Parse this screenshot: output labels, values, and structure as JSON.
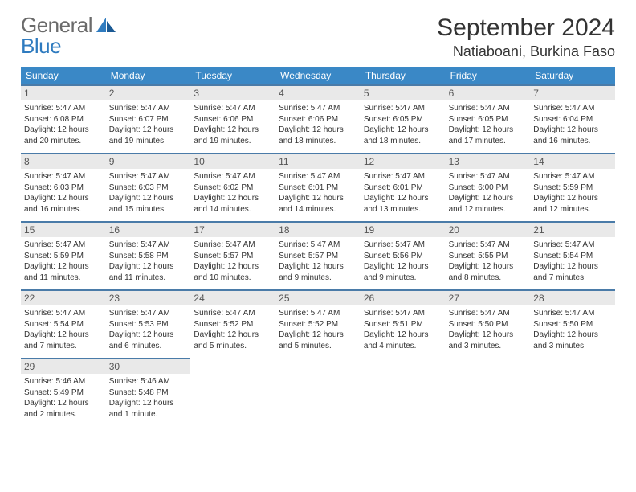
{
  "brand": {
    "line1": "General",
    "line2": "Blue"
  },
  "title": "September 2024",
  "location": "Natiaboani, Burkina Faso",
  "colors": {
    "header_bg": "#3a88c6",
    "row_border": "#4a7ba8",
    "daynum_bg": "#e9e9e9",
    "logo_gray": "#6b6b6b",
    "logo_blue": "#2f7bbf",
    "text": "#333333",
    "bg": "#ffffff"
  },
  "day_headers": [
    "Sunday",
    "Monday",
    "Tuesday",
    "Wednesday",
    "Thursday",
    "Friday",
    "Saturday"
  ],
  "days": [
    {
      "n": "1",
      "sunrise": "5:47 AM",
      "sunset": "6:08 PM",
      "daylight": "12 hours and 20 minutes."
    },
    {
      "n": "2",
      "sunrise": "5:47 AM",
      "sunset": "6:07 PM",
      "daylight": "12 hours and 19 minutes."
    },
    {
      "n": "3",
      "sunrise": "5:47 AM",
      "sunset": "6:06 PM",
      "daylight": "12 hours and 19 minutes."
    },
    {
      "n": "4",
      "sunrise": "5:47 AM",
      "sunset": "6:06 PM",
      "daylight": "12 hours and 18 minutes."
    },
    {
      "n": "5",
      "sunrise": "5:47 AM",
      "sunset": "6:05 PM",
      "daylight": "12 hours and 18 minutes."
    },
    {
      "n": "6",
      "sunrise": "5:47 AM",
      "sunset": "6:05 PM",
      "daylight": "12 hours and 17 minutes."
    },
    {
      "n": "7",
      "sunrise": "5:47 AM",
      "sunset": "6:04 PM",
      "daylight": "12 hours and 16 minutes."
    },
    {
      "n": "8",
      "sunrise": "5:47 AM",
      "sunset": "6:03 PM",
      "daylight": "12 hours and 16 minutes."
    },
    {
      "n": "9",
      "sunrise": "5:47 AM",
      "sunset": "6:03 PM",
      "daylight": "12 hours and 15 minutes."
    },
    {
      "n": "10",
      "sunrise": "5:47 AM",
      "sunset": "6:02 PM",
      "daylight": "12 hours and 14 minutes."
    },
    {
      "n": "11",
      "sunrise": "5:47 AM",
      "sunset": "6:01 PM",
      "daylight": "12 hours and 14 minutes."
    },
    {
      "n": "12",
      "sunrise": "5:47 AM",
      "sunset": "6:01 PM",
      "daylight": "12 hours and 13 minutes."
    },
    {
      "n": "13",
      "sunrise": "5:47 AM",
      "sunset": "6:00 PM",
      "daylight": "12 hours and 12 minutes."
    },
    {
      "n": "14",
      "sunrise": "5:47 AM",
      "sunset": "5:59 PM",
      "daylight": "12 hours and 12 minutes."
    },
    {
      "n": "15",
      "sunrise": "5:47 AM",
      "sunset": "5:59 PM",
      "daylight": "12 hours and 11 minutes."
    },
    {
      "n": "16",
      "sunrise": "5:47 AM",
      "sunset": "5:58 PM",
      "daylight": "12 hours and 11 minutes."
    },
    {
      "n": "17",
      "sunrise": "5:47 AM",
      "sunset": "5:57 PM",
      "daylight": "12 hours and 10 minutes."
    },
    {
      "n": "18",
      "sunrise": "5:47 AM",
      "sunset": "5:57 PM",
      "daylight": "12 hours and 9 minutes."
    },
    {
      "n": "19",
      "sunrise": "5:47 AM",
      "sunset": "5:56 PM",
      "daylight": "12 hours and 9 minutes."
    },
    {
      "n": "20",
      "sunrise": "5:47 AM",
      "sunset": "5:55 PM",
      "daylight": "12 hours and 8 minutes."
    },
    {
      "n": "21",
      "sunrise": "5:47 AM",
      "sunset": "5:54 PM",
      "daylight": "12 hours and 7 minutes."
    },
    {
      "n": "22",
      "sunrise": "5:47 AM",
      "sunset": "5:54 PM",
      "daylight": "12 hours and 7 minutes."
    },
    {
      "n": "23",
      "sunrise": "5:47 AM",
      "sunset": "5:53 PM",
      "daylight": "12 hours and 6 minutes."
    },
    {
      "n": "24",
      "sunrise": "5:47 AM",
      "sunset": "5:52 PM",
      "daylight": "12 hours and 5 minutes."
    },
    {
      "n": "25",
      "sunrise": "5:47 AM",
      "sunset": "5:52 PM",
      "daylight": "12 hours and 5 minutes."
    },
    {
      "n": "26",
      "sunrise": "5:47 AM",
      "sunset": "5:51 PM",
      "daylight": "12 hours and 4 minutes."
    },
    {
      "n": "27",
      "sunrise": "5:47 AM",
      "sunset": "5:50 PM",
      "daylight": "12 hours and 3 minutes."
    },
    {
      "n": "28",
      "sunrise": "5:47 AM",
      "sunset": "5:50 PM",
      "daylight": "12 hours and 3 minutes."
    },
    {
      "n": "29",
      "sunrise": "5:46 AM",
      "sunset": "5:49 PM",
      "daylight": "12 hours and 2 minutes."
    },
    {
      "n": "30",
      "sunrise": "5:46 AM",
      "sunset": "5:48 PM",
      "daylight": "12 hours and 1 minute."
    }
  ],
  "labels": {
    "sunrise": "Sunrise: ",
    "sunset": "Sunset: ",
    "daylight": "Daylight: "
  }
}
